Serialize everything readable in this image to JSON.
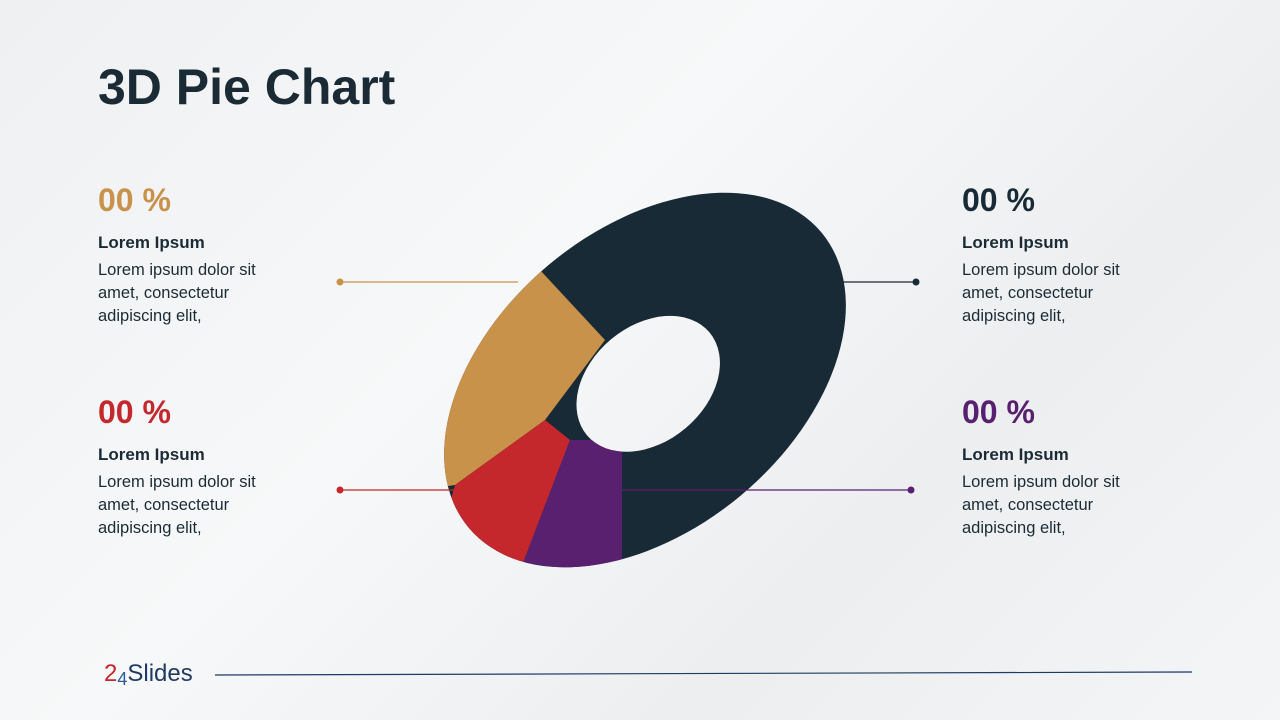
{
  "title": "3D Pie Chart",
  "callouts": [
    {
      "percent": "00 %",
      "heading": "Lorem Ipsum",
      "body": "Lorem ipsum dolor sit amet, consectetur adipiscing elit,"
    },
    {
      "percent": "00 %",
      "heading": "Lorem Ipsum",
      "body": "Lorem ipsum dolor sit amet, consectetur adipiscing elit,"
    },
    {
      "percent": "00 %",
      "heading": "Lorem Ipsum",
      "body": "Lorem ipsum dolor sit amet, consectetur adipiscing elit,"
    },
    {
      "percent": "00 %",
      "heading": "Lorem Ipsum",
      "body": "Lorem ipsum dolor sit amet, consectetur adipiscing elit,"
    }
  ],
  "logo": {
    "parts": [
      "2",
      "4",
      "Slides"
    ]
  }
}
